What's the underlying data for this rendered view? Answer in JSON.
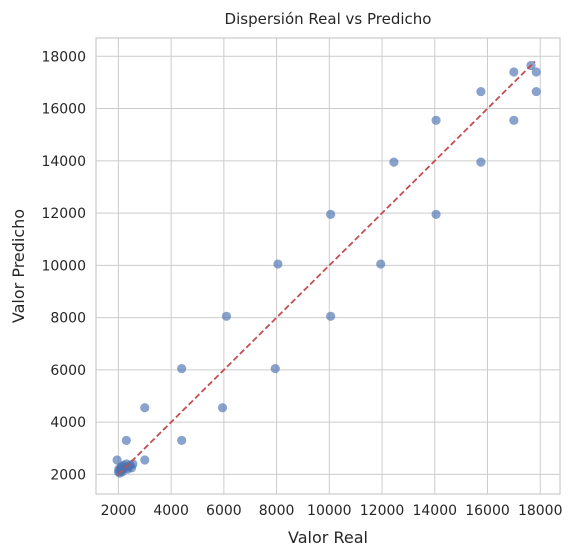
{
  "chart_data": {
    "type": "scatter",
    "title": "Dispersión Real vs Predicho",
    "xlabel": "Valor Real",
    "ylabel": "Valor Predicho",
    "xlim": [
      1150,
      18750
    ],
    "ylim": [
      1250,
      18700
    ],
    "x_ticks": [
      "2000",
      "4000",
      "6000",
      "8000",
      "10000",
      "12000",
      "14000",
      "16000",
      "18000"
    ],
    "y_ticks": [
      "2000",
      "4000",
      "6000",
      "8000",
      "10000",
      "12000",
      "14000",
      "16000",
      "18000"
    ],
    "grid": true,
    "point_color": "#4c72b0",
    "reference_line": {
      "style": "dashed",
      "color": "#c44e52",
      "x": [
        2000,
        17800
      ],
      "y": [
        2000,
        17800
      ]
    },
    "points": [
      {
        "x": 1950,
        "y": 2550
      },
      {
        "x": 2000,
        "y": 2100
      },
      {
        "x": 2020,
        "y": 2200
      },
      {
        "x": 2050,
        "y": 2050
      },
      {
        "x": 2080,
        "y": 2250
      },
      {
        "x": 2100,
        "y": 2150
      },
      {
        "x": 2120,
        "y": 2300
      },
      {
        "x": 2150,
        "y": 2100
      },
      {
        "x": 2180,
        "y": 2200
      },
      {
        "x": 2200,
        "y": 2350
      },
      {
        "x": 2250,
        "y": 2250
      },
      {
        "x": 2300,
        "y": 2400
      },
      {
        "x": 2350,
        "y": 2200
      },
      {
        "x": 2400,
        "y": 2300
      },
      {
        "x": 2450,
        "y": 2350
      },
      {
        "x": 2500,
        "y": 2250
      },
      {
        "x": 2550,
        "y": 2400
      },
      {
        "x": 2300,
        "y": 3300
      },
      {
        "x": 3000,
        "y": 2550
      },
      {
        "x": 3000,
        "y": 4550
      },
      {
        "x": 4400,
        "y": 3300
      },
      {
        "x": 4400,
        "y": 6050
      },
      {
        "x": 5950,
        "y": 4550
      },
      {
        "x": 6100,
        "y": 8050
      },
      {
        "x": 7950,
        "y": 6050
      },
      {
        "x": 8050,
        "y": 10050
      },
      {
        "x": 10050,
        "y": 8050
      },
      {
        "x": 10050,
        "y": 11950
      },
      {
        "x": 11950,
        "y": 10050
      },
      {
        "x": 12450,
        "y": 13950
      },
      {
        "x": 14050,
        "y": 11950
      },
      {
        "x": 14050,
        "y": 15550
      },
      {
        "x": 15750,
        "y": 13950
      },
      {
        "x": 15750,
        "y": 16650
      },
      {
        "x": 17000,
        "y": 15550
      },
      {
        "x": 17000,
        "y": 17400
      },
      {
        "x": 17650,
        "y": 17650
      },
      {
        "x": 17850,
        "y": 16650
      },
      {
        "x": 17850,
        "y": 17400
      }
    ]
  }
}
